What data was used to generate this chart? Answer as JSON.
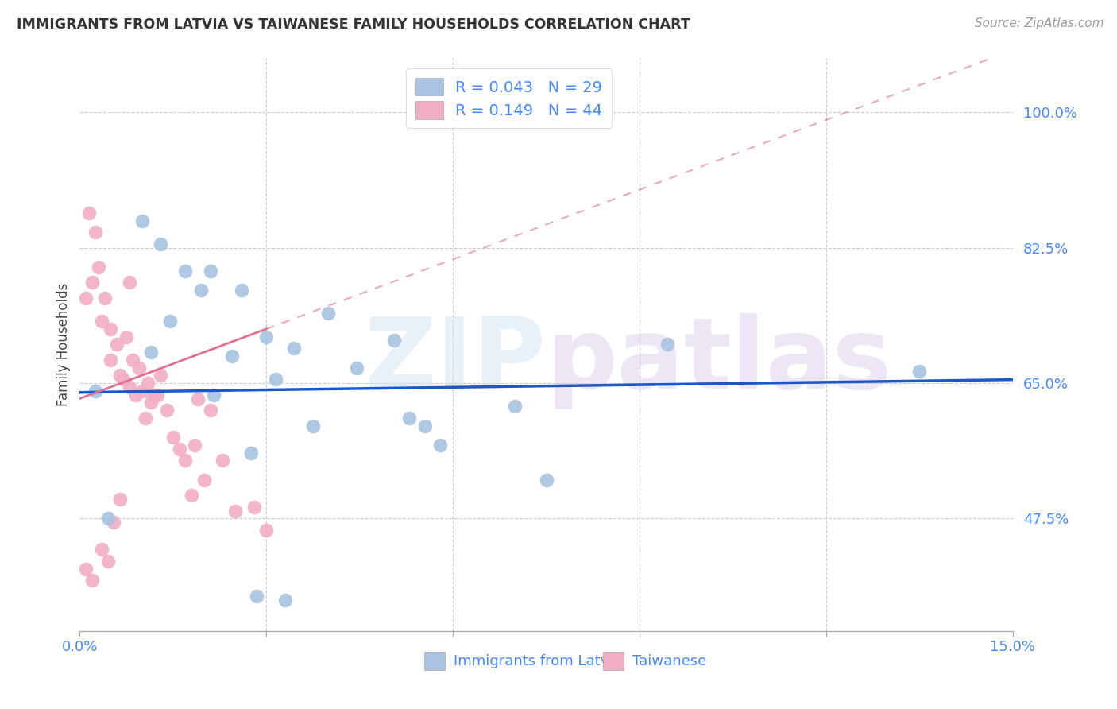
{
  "title": "IMMIGRANTS FROM LATVIA VS TAIWANESE FAMILY HOUSEHOLDS CORRELATION CHART",
  "source": "Source: ZipAtlas.com",
  "ylabel": "Family Households",
  "xlim": [
    0.0,
    15.0
  ],
  "ylim": [
    33.0,
    107.0
  ],
  "yticks": [
    47.5,
    65.0,
    82.5,
    100.0
  ],
  "xtick_positions": [
    0.0,
    3.0,
    6.0,
    9.0,
    12.0,
    15.0
  ],
  "legend_R_blue": "R = 0.043",
  "legend_N_blue": "N = 29",
  "legend_R_pink": "R = 0.149",
  "legend_N_pink": "N = 44",
  "blue_color": "#a8c4e0",
  "pink_color": "#f2aec4",
  "line_blue_color": "#1a56cc",
  "line_pink_color": "#e07090",
  "watermark": "ZIPpatlas",
  "blue_x": [
    0.25,
    0.45,
    1.15,
    1.45,
    1.7,
    1.95,
    2.15,
    2.45,
    3.0,
    3.15,
    3.45,
    4.45,
    5.05,
    5.55,
    7.0,
    9.45,
    13.5,
    5.8,
    7.5,
    2.75,
    3.75,
    4.0,
    1.0,
    1.3,
    2.1,
    2.6,
    2.85,
    3.3,
    5.3
  ],
  "blue_y": [
    64.0,
    47.5,
    69.0,
    73.0,
    79.5,
    77.0,
    63.5,
    68.5,
    71.0,
    65.5,
    69.5,
    67.0,
    70.5,
    59.5,
    62.0,
    70.0,
    66.5,
    57.0,
    52.5,
    56.0,
    59.5,
    74.0,
    86.0,
    83.0,
    79.5,
    77.0,
    37.5,
    37.0,
    60.5
  ],
  "pink_x": [
    0.1,
    0.15,
    0.2,
    0.25,
    0.3,
    0.35,
    0.4,
    0.45,
    0.5,
    0.55,
    0.6,
    0.65,
    0.7,
    0.75,
    0.8,
    0.85,
    0.9,
    0.95,
    1.0,
    1.05,
    1.1,
    1.15,
    1.2,
    1.3,
    1.4,
    1.5,
    1.6,
    1.7,
    1.8,
    1.85,
    2.0,
    2.1,
    2.3,
    2.5,
    2.8,
    3.0,
    0.2,
    0.35,
    0.5,
    0.65,
    0.8,
    1.25,
    1.9,
    0.1
  ],
  "pink_y": [
    76.0,
    87.0,
    78.0,
    84.5,
    80.0,
    43.5,
    76.0,
    42.0,
    72.0,
    47.0,
    70.0,
    50.0,
    65.5,
    71.0,
    64.5,
    68.0,
    63.5,
    67.0,
    64.0,
    60.5,
    65.0,
    62.5,
    63.5,
    66.0,
    61.5,
    58.0,
    56.5,
    55.0,
    50.5,
    57.0,
    52.5,
    61.5,
    55.0,
    48.5,
    49.0,
    46.0,
    39.5,
    73.0,
    68.0,
    66.0,
    78.0,
    63.5,
    63.0,
    41.0
  ]
}
